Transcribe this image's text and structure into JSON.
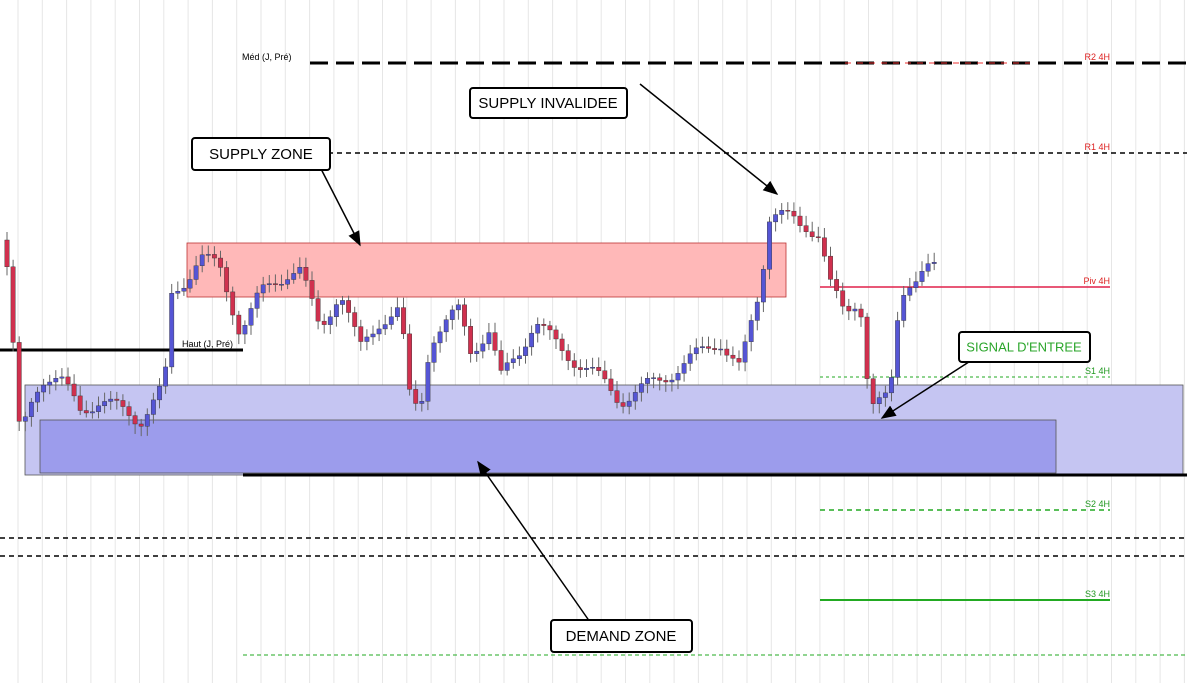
{
  "annotations": {
    "supply_zone": "SUPPLY ZONE",
    "supply_invalidee": "SUPPLY INVALIDEE",
    "demand_zone": "DEMAND ZONE",
    "signal": "SIGNAL D'ENTREE"
  },
  "levels": {
    "med": "Méd (J, Pré)",
    "haut": "Haut (J, Pré)",
    "r2": "R2 4H",
    "r1": "R1 4H",
    "piv": "Piv 4H",
    "s1": "S1 4H",
    "s2": "S2 4H",
    "s3": "S3 4H"
  }
}
